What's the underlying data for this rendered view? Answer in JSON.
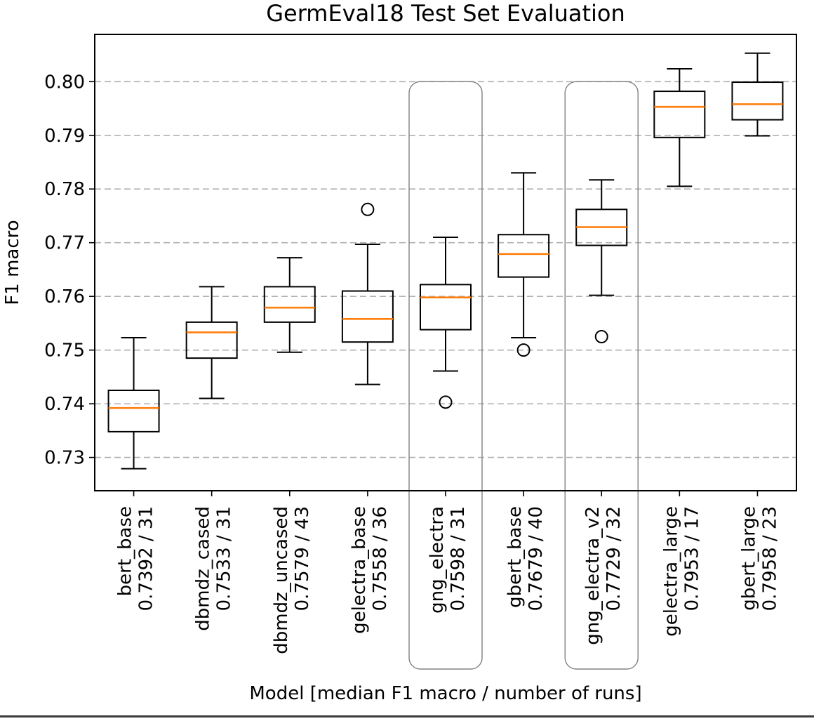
{
  "chart_data": {
    "type": "box",
    "title": "GermEval18 Test Set Evaluation",
    "xlabel": "Model [median F1 macro / number of runs]",
    "ylabel": "F1 macro",
    "ylim": [
      0.7238,
      0.8088
    ],
    "yticks": [
      0.73,
      0.74,
      0.75,
      0.76,
      0.77,
      0.78,
      0.79,
      0.8
    ],
    "ytick_labels": [
      "0.73",
      "0.74",
      "0.75",
      "0.76",
      "0.77",
      "0.78",
      "0.79",
      "0.80"
    ],
    "grid": "horizontal dashed",
    "colors": {
      "box": "#000000",
      "median": "#ff7f0e",
      "grid": "#b0b0b0",
      "highlight": "#808080"
    },
    "categories": [
      {
        "name": "bert_base",
        "stats": "0.7392 / 31",
        "highlight": false,
        "whisker_low": 0.7279,
        "q1": 0.7348,
        "median": 0.7392,
        "q3": 0.7425,
        "whisker_high": 0.7523,
        "outliers": []
      },
      {
        "name": "dbmdz_cased",
        "stats": "0.7533 / 31",
        "highlight": false,
        "whisker_low": 0.741,
        "q1": 0.7485,
        "median": 0.7533,
        "q3": 0.7552,
        "whisker_high": 0.7618,
        "outliers": []
      },
      {
        "name": "dbmdz_uncased",
        "stats": "0.7579 / 43",
        "highlight": false,
        "whisker_low": 0.7496,
        "q1": 0.7552,
        "median": 0.7579,
        "q3": 0.7618,
        "whisker_high": 0.7672,
        "outliers": []
      },
      {
        "name": "gelectra_base",
        "stats": "0.7558 / 36",
        "highlight": false,
        "whisker_low": 0.7436,
        "q1": 0.7515,
        "median": 0.7558,
        "q3": 0.761,
        "whisker_high": 0.7697,
        "outliers": [
          0.7762
        ]
      },
      {
        "name": "gng_electra",
        "stats": "0.7598 / 31",
        "highlight": true,
        "whisker_low": 0.7461,
        "q1": 0.7538,
        "median": 0.7598,
        "q3": 0.7622,
        "whisker_high": 0.771,
        "outliers": [
          0.7403
        ]
      },
      {
        "name": "gbert_base",
        "stats": "0.7679 / 40",
        "highlight": false,
        "whisker_low": 0.7523,
        "q1": 0.7636,
        "median": 0.7679,
        "q3": 0.7715,
        "whisker_high": 0.783,
        "outliers": [
          0.75
        ]
      },
      {
        "name": "gng_electra_v2",
        "stats": "0.7729 / 32",
        "highlight": true,
        "whisker_low": 0.7602,
        "q1": 0.7695,
        "median": 0.7729,
        "q3": 0.7762,
        "whisker_high": 0.7817,
        "outliers": [
          0.7525
        ]
      },
      {
        "name": "gelectra_large",
        "stats": "0.7953 / 17",
        "highlight": false,
        "whisker_low": 0.7805,
        "q1": 0.7896,
        "median": 0.7953,
        "q3": 0.7982,
        "whisker_high": 0.8024,
        "outliers": []
      },
      {
        "name": "gbert_large",
        "stats": "0.7958 / 23",
        "highlight": false,
        "whisker_low": 0.7899,
        "q1": 0.7929,
        "median": 0.7958,
        "q3": 0.7999,
        "whisker_high": 0.8053,
        "outliers": []
      }
    ]
  }
}
